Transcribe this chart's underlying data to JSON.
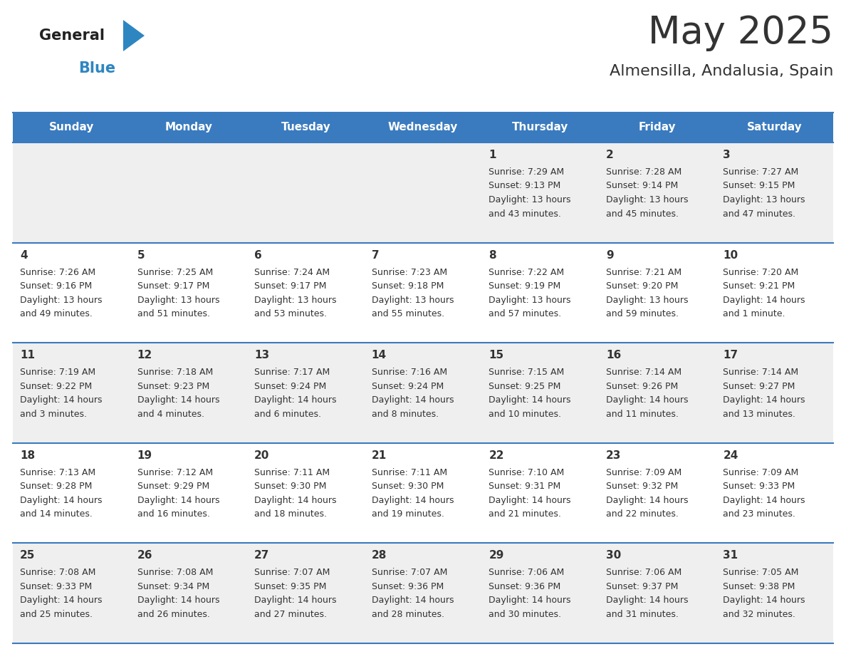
{
  "title": "May 2025",
  "subtitle": "Almensilla, Andalusia, Spain",
  "header_color": "#3A7BBF",
  "header_text_color": "#FFFFFF",
  "alt_row_color": "#EFEFEF",
  "white_color": "#FFFFFF",
  "border_color": "#3A7BBF",
  "text_color": "#333333",
  "day_num_color": "#333333",
  "cell_text_color": "#333333",
  "day_headers": [
    "Sunday",
    "Monday",
    "Tuesday",
    "Wednesday",
    "Thursday",
    "Friday",
    "Saturday"
  ],
  "days_data": [
    {
      "day": "",
      "sunrise": "",
      "sunset": "",
      "daylight": ""
    },
    {
      "day": "",
      "sunrise": "",
      "sunset": "",
      "daylight": ""
    },
    {
      "day": "",
      "sunrise": "",
      "sunset": "",
      "daylight": ""
    },
    {
      "day": "",
      "sunrise": "",
      "sunset": "",
      "daylight": ""
    },
    {
      "day": "1",
      "sunrise": "7:29 AM",
      "sunset": "9:13 PM",
      "daylight": "13 hours\nand 43 minutes."
    },
    {
      "day": "2",
      "sunrise": "7:28 AM",
      "sunset": "9:14 PM",
      "daylight": "13 hours\nand 45 minutes."
    },
    {
      "day": "3",
      "sunrise": "7:27 AM",
      "sunset": "9:15 PM",
      "daylight": "13 hours\nand 47 minutes."
    },
    {
      "day": "4",
      "sunrise": "7:26 AM",
      "sunset": "9:16 PM",
      "daylight": "13 hours\nand 49 minutes."
    },
    {
      "day": "5",
      "sunrise": "7:25 AM",
      "sunset": "9:17 PM",
      "daylight": "13 hours\nand 51 minutes."
    },
    {
      "day": "6",
      "sunrise": "7:24 AM",
      "sunset": "9:17 PM",
      "daylight": "13 hours\nand 53 minutes."
    },
    {
      "day": "7",
      "sunrise": "7:23 AM",
      "sunset": "9:18 PM",
      "daylight": "13 hours\nand 55 minutes."
    },
    {
      "day": "8",
      "sunrise": "7:22 AM",
      "sunset": "9:19 PM",
      "daylight": "13 hours\nand 57 minutes."
    },
    {
      "day": "9",
      "sunrise": "7:21 AM",
      "sunset": "9:20 PM",
      "daylight": "13 hours\nand 59 minutes."
    },
    {
      "day": "10",
      "sunrise": "7:20 AM",
      "sunset": "9:21 PM",
      "daylight": "14 hours\nand 1 minute."
    },
    {
      "day": "11",
      "sunrise": "7:19 AM",
      "sunset": "9:22 PM",
      "daylight": "14 hours\nand 3 minutes."
    },
    {
      "day": "12",
      "sunrise": "7:18 AM",
      "sunset": "9:23 PM",
      "daylight": "14 hours\nand 4 minutes."
    },
    {
      "day": "13",
      "sunrise": "7:17 AM",
      "sunset": "9:24 PM",
      "daylight": "14 hours\nand 6 minutes."
    },
    {
      "day": "14",
      "sunrise": "7:16 AM",
      "sunset": "9:24 PM",
      "daylight": "14 hours\nand 8 minutes."
    },
    {
      "day": "15",
      "sunrise": "7:15 AM",
      "sunset": "9:25 PM",
      "daylight": "14 hours\nand 10 minutes."
    },
    {
      "day": "16",
      "sunrise": "7:14 AM",
      "sunset": "9:26 PM",
      "daylight": "14 hours\nand 11 minutes."
    },
    {
      "day": "17",
      "sunrise": "7:14 AM",
      "sunset": "9:27 PM",
      "daylight": "14 hours\nand 13 minutes."
    },
    {
      "day": "18",
      "sunrise": "7:13 AM",
      "sunset": "9:28 PM",
      "daylight": "14 hours\nand 14 minutes."
    },
    {
      "day": "19",
      "sunrise": "7:12 AM",
      "sunset": "9:29 PM",
      "daylight": "14 hours\nand 16 minutes."
    },
    {
      "day": "20",
      "sunrise": "7:11 AM",
      "sunset": "9:30 PM",
      "daylight": "14 hours\nand 18 minutes."
    },
    {
      "day": "21",
      "sunrise": "7:11 AM",
      "sunset": "9:30 PM",
      "daylight": "14 hours\nand 19 minutes."
    },
    {
      "day": "22",
      "sunrise": "7:10 AM",
      "sunset": "9:31 PM",
      "daylight": "14 hours\nand 21 minutes."
    },
    {
      "day": "23",
      "sunrise": "7:09 AM",
      "sunset": "9:32 PM",
      "daylight": "14 hours\nand 22 minutes."
    },
    {
      "day": "24",
      "sunrise": "7:09 AM",
      "sunset": "9:33 PM",
      "daylight": "14 hours\nand 23 minutes."
    },
    {
      "day": "25",
      "sunrise": "7:08 AM",
      "sunset": "9:33 PM",
      "daylight": "14 hours\nand 25 minutes."
    },
    {
      "day": "26",
      "sunrise": "7:08 AM",
      "sunset": "9:34 PM",
      "daylight": "14 hours\nand 26 minutes."
    },
    {
      "day": "27",
      "sunrise": "7:07 AM",
      "sunset": "9:35 PM",
      "daylight": "14 hours\nand 27 minutes."
    },
    {
      "day": "28",
      "sunrise": "7:07 AM",
      "sunset": "9:36 PM",
      "daylight": "14 hours\nand 28 minutes."
    },
    {
      "day": "29",
      "sunrise": "7:06 AM",
      "sunset": "9:36 PM",
      "daylight": "14 hours\nand 30 minutes."
    },
    {
      "day": "30",
      "sunrise": "7:06 AM",
      "sunset": "9:37 PM",
      "daylight": "14 hours\nand 31 minutes."
    },
    {
      "day": "31",
      "sunrise": "7:05 AM",
      "sunset": "9:38 PM",
      "daylight": "14 hours\nand 32 minutes."
    }
  ],
  "logo_general_color": "#222222",
  "logo_blue_color": "#2E86C1"
}
